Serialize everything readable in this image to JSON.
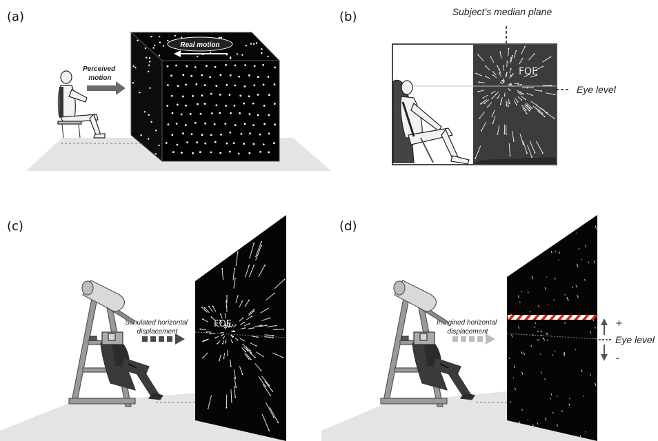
{
  "panels": {
    "a": {
      "label": "(a)",
      "perceived_motion": [
        "Perceived",
        "motion"
      ],
      "real_motion": "Real motion"
    },
    "b": {
      "label": "(b)",
      "median_plane": "Subject’s median plane",
      "foe": "FOE",
      "eye_level": "Eye level"
    },
    "c": {
      "label": "(c)",
      "simulated": [
        "Simulated horizontal",
        "displacement"
      ],
      "foe": "FOE"
    },
    "d": {
      "label": "(d)",
      "imagined": [
        "Imagined horizontal",
        "displacement"
      ],
      "plus": "+",
      "minus": "-",
      "eye_level": "Eye level"
    }
  },
  "colors": {
    "background": "#ffffff",
    "screen": "#050505",
    "screen_b": "#3c3c3c",
    "floor": "#e4e4e4",
    "arrow_a": "#6a6a6a",
    "arrow_c": "#4a4a4a",
    "arrow_d": "#bdbdbd",
    "rod_red": "#d8281e",
    "figure_gray": "#cfcfcf"
  }
}
